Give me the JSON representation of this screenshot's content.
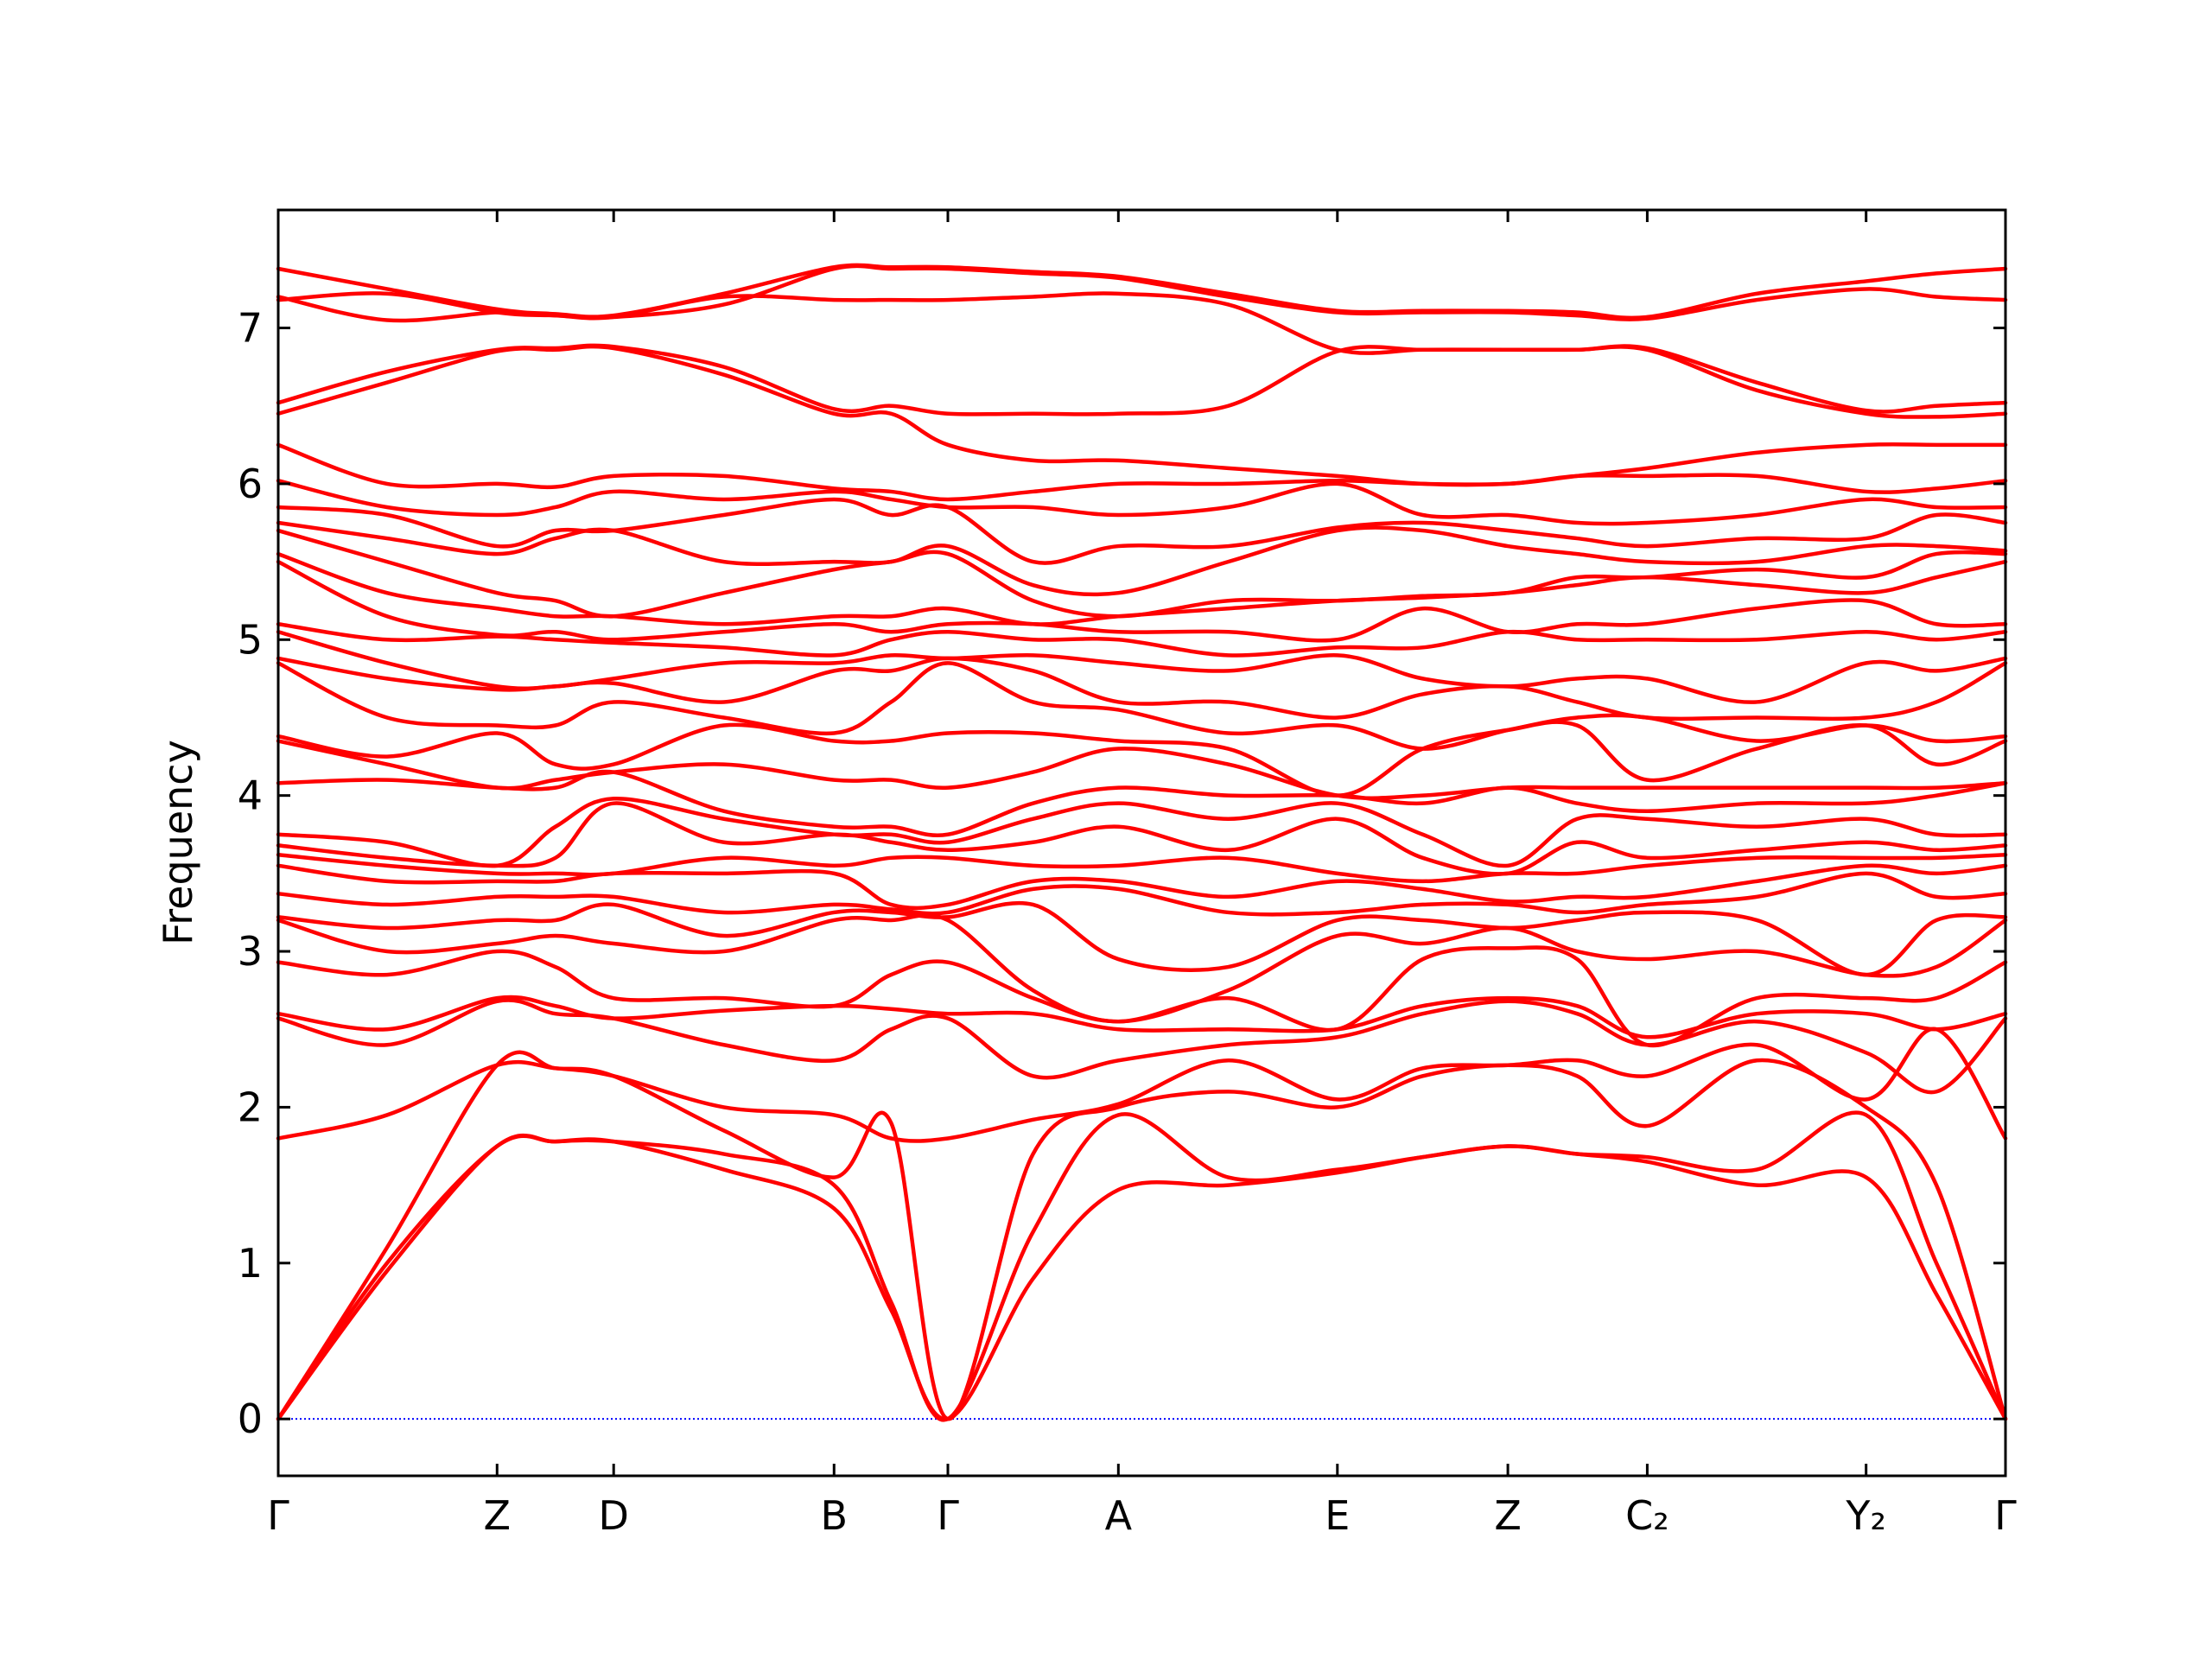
{
  "chart_data": {
    "type": "line",
    "ylabel": "Frequency",
    "color": "#ff0000",
    "zero_line": {
      "y": 0,
      "color": "#0000ff"
    },
    "xlim": [
      0,
      1
    ],
    "ylim": [
      -0.365,
      7.757
    ],
    "yticks": [
      0,
      1,
      2,
      3,
      4,
      5,
      6,
      7
    ],
    "xticks": [
      {
        "value": 0,
        "label": "Γ"
      },
      {
        "value": 0.1267,
        "label": "Z"
      },
      {
        "value": 0.1942,
        "label": "D"
      },
      {
        "value": 0.3218,
        "label": "B"
      },
      {
        "value": 0.3877,
        "label": "Γ"
      },
      {
        "value": 0.4864,
        "label": "A"
      },
      {
        "value": 0.6132,
        "label": "E"
      },
      {
        "value": 0.7119,
        "label": "Z"
      },
      {
        "value": 0.7926,
        "label": "C₂"
      },
      {
        "value": 0.9193,
        "label": "Y₂"
      },
      {
        "value": 1,
        "label": "Γ"
      }
    ],
    "x": [
      0,
      0.063,
      0.1267,
      0.1605,
      0.1942,
      0.258,
      0.3218,
      0.3548,
      0.3877,
      0.437,
      0.4864,
      0.55,
      0.6132,
      0.6626,
      0.7119,
      0.752,
      0.7926,
      0.856,
      0.9193,
      0.96,
      1
    ],
    "series": [
      {
        "values": [
          0,
          0.95,
          1.75,
          1.78,
          1.78,
          1.6,
          1.35,
          0.7,
          0,
          0.9,
          1.47,
          1.5,
          1.58,
          1.68,
          1.75,
          1.7,
          1.65,
          1.5,
          1.55,
          0.8,
          0
        ]
      },
      {
        "values": [
          0,
          1.0,
          1.75,
          1.78,
          1.78,
          1.7,
          1.5,
          0.75,
          0,
          1.2,
          1.95,
          1.55,
          1.6,
          1.68,
          1.75,
          1.7,
          1.68,
          1.6,
          1.95,
          1.0,
          0
        ]
      },
      {
        "values": [
          0,
          1.1,
          2.27,
          2.25,
          2.2,
          1.85,
          1.55,
          1.9,
          0,
          1.7,
          2.0,
          2.1,
          2.0,
          2.2,
          2.27,
          2.2,
          1.88,
          2.3,
          2.0,
          1.5,
          0
        ]
      },
      {
        "values": [
          1.8,
          1.95,
          2.27,
          2.25,
          2.2,
          2.0,
          1.95,
          1.8,
          1.8,
          1.92,
          2.02,
          2.3,
          2.05,
          2.25,
          2.27,
          2.3,
          2.2,
          2.4,
          2.05,
          2.5,
          1.8
        ]
      },
      {
        "values": [
          2.57,
          2.4,
          2.68,
          2.6,
          2.57,
          2.4,
          2.3,
          2.5,
          2.57,
          2.2,
          2.3,
          2.4,
          2.45,
          2.6,
          2.68,
          2.6,
          2.4,
          2.55,
          2.35,
          2.1,
          2.57
        ]
      },
      {
        "values": [
          2.6,
          2.5,
          2.7,
          2.65,
          2.57,
          2.62,
          2.65,
          2.63,
          2.6,
          2.6,
          2.5,
          2.5,
          2.5,
          2.65,
          2.7,
          2.65,
          2.45,
          2.6,
          2.6,
          2.5,
          2.6
        ]
      },
      {
        "values": [
          2.93,
          2.85,
          3.0,
          2.9,
          2.7,
          2.7,
          2.65,
          2.85,
          2.93,
          2.7,
          2.55,
          2.7,
          2.5,
          2.95,
          3.02,
          2.95,
          2.4,
          2.7,
          2.7,
          2.7,
          2.93
        ]
      },
      {
        "values": [
          3.2,
          3.0,
          3.05,
          3.1,
          3.05,
          3.0,
          3.2,
          3.2,
          3.2,
          2.75,
          2.55,
          2.75,
          3.1,
          3.05,
          3.15,
          3.0,
          2.95,
          3.0,
          2.85,
          2.9,
          3.2
        ]
      },
      {
        "values": [
          3.22,
          3.15,
          3.2,
          3.2,
          3.3,
          3.1,
          3.25,
          3.25,
          3.22,
          3.3,
          2.95,
          2.9,
          3.2,
          3.2,
          3.15,
          3.2,
          3.25,
          3.2,
          2.85,
          3.2,
          3.22
        ]
      },
      {
        "values": [
          3.37,
          3.3,
          3.35,
          3.35,
          3.35,
          3.25,
          3.3,
          3.27,
          3.25,
          3.4,
          3.4,
          3.25,
          3.25,
          3.3,
          3.3,
          3.25,
          3.3,
          3.35,
          3.5,
          3.35,
          3.37
        ]
      },
      {
        "values": [
          3.55,
          3.45,
          3.45,
          3.45,
          3.5,
          3.5,
          3.5,
          3.3,
          3.3,
          3.45,
          3.45,
          3.35,
          3.45,
          3.4,
          3.32,
          3.35,
          3.35,
          3.45,
          3.55,
          3.5,
          3.55
        ]
      },
      {
        "values": [
          3.62,
          3.55,
          3.5,
          3.5,
          3.5,
          3.6,
          3.55,
          3.6,
          3.6,
          3.55,
          3.55,
          3.6,
          3.5,
          3.45,
          3.5,
          3.5,
          3.55,
          3.6,
          3.6,
          3.6,
          3.62
        ]
      },
      {
        "values": [
          3.68,
          3.6,
          3.55,
          3.6,
          3.95,
          3.7,
          3.75,
          3.7,
          3.65,
          3.7,
          3.8,
          3.65,
          3.85,
          3.6,
          3.5,
          3.7,
          3.6,
          3.65,
          3.7,
          3.65,
          3.68
        ]
      },
      {
        "values": [
          3.75,
          3.7,
          3.55,
          3.8,
          3.98,
          3.85,
          3.75,
          3.75,
          3.7,
          3.85,
          3.95,
          3.85,
          3.95,
          3.75,
          3.55,
          3.85,
          3.85,
          3.8,
          3.85,
          3.75,
          3.75
        ]
      },
      {
        "values": [
          4.08,
          4.1,
          4.05,
          4.05,
          4.15,
          3.9,
          3.8,
          3.8,
          3.75,
          3.95,
          4.05,
          4.0,
          4.0,
          3.95,
          4.05,
          3.95,
          3.9,
          3.95,
          3.95,
          4.0,
          4.08
        ]
      },
      {
        "values": [
          4.35,
          4.2,
          4.05,
          4.1,
          4.15,
          4.2,
          4.1,
          4.1,
          4.05,
          4.15,
          4.3,
          4.2,
          4.0,
          4.0,
          4.05,
          4.05,
          4.05,
          4.05,
          4.05,
          4.05,
          4.08
        ]
      },
      {
        "values": [
          4.38,
          4.25,
          4.4,
          4.2,
          4.2,
          4.45,
          4.35,
          4.35,
          4.4,
          4.4,
          4.35,
          4.3,
          4.0,
          4.3,
          4.42,
          4.45,
          4.1,
          4.3,
          4.45,
          4.2,
          4.35
        ]
      },
      {
        "values": [
          4.85,
          4.5,
          4.45,
          4.45,
          4.6,
          4.5,
          4.4,
          4.6,
          4.85,
          4.6,
          4.55,
          4.4,
          4.45,
          4.3,
          4.42,
          4.5,
          4.5,
          4.35,
          4.45,
          4.35,
          4.38
        ]
      },
      {
        "values": [
          4.88,
          4.75,
          4.68,
          4.7,
          4.72,
          4.6,
          4.8,
          4.8,
          4.88,
          4.8,
          4.6,
          4.6,
          4.5,
          4.65,
          4.7,
          4.6,
          4.5,
          4.5,
          4.5,
          4.6,
          4.85
        ]
      },
      {
        "values": [
          5.05,
          4.85,
          4.7,
          4.7,
          4.75,
          4.85,
          4.85,
          4.9,
          4.88,
          4.9,
          4.85,
          4.8,
          4.9,
          4.75,
          4.7,
          4.75,
          4.75,
          4.6,
          4.85,
          4.8,
          4.88
        ]
      },
      {
        "values": [
          5.1,
          5.0,
          5.02,
          5.0,
          4.98,
          4.95,
          4.9,
          5.0,
          5.05,
          5.0,
          5.0,
          4.9,
          4.95,
          4.95,
          5.05,
          5.0,
          5.0,
          5.0,
          5.05,
          5.0,
          5.05
        ]
      },
      {
        "values": [
          5.5,
          5.15,
          5.03,
          5.05,
          5.0,
          5.05,
          5.1,
          5.05,
          5.1,
          5.1,
          5.05,
          5.05,
          5.0,
          5.2,
          5.05,
          5.1,
          5.1,
          5.2,
          5.25,
          5.1,
          5.1
        ]
      },
      {
        "values": [
          5.55,
          5.3,
          5.2,
          5.15,
          5.15,
          5.1,
          5.15,
          5.15,
          5.2,
          5.1,
          5.15,
          5.2,
          5.25,
          5.27,
          5.3,
          5.35,
          5.4,
          5.35,
          5.3,
          5.4,
          5.5
        ]
      },
      {
        "values": [
          5.7,
          5.5,
          5.3,
          5.25,
          5.15,
          5.3,
          5.45,
          5.5,
          5.55,
          5.25,
          5.15,
          5.25,
          5.25,
          5.28,
          5.3,
          5.4,
          5.4,
          5.45,
          5.4,
          5.55,
          5.55
        ]
      },
      {
        "values": [
          5.75,
          5.65,
          5.55,
          5.65,
          5.7,
          5.5,
          5.5,
          5.5,
          5.6,
          5.35,
          5.3,
          5.5,
          5.7,
          5.7,
          5.6,
          5.55,
          5.5,
          5.5,
          5.6,
          5.6,
          5.57
        ]
      },
      {
        "values": [
          5.85,
          5.8,
          5.6,
          5.7,
          5.7,
          5.8,
          5.9,
          5.8,
          5.85,
          5.5,
          5.6,
          5.6,
          5.72,
          5.75,
          5.7,
          5.65,
          5.6,
          5.65,
          5.65,
          5.8,
          5.75
        ]
      },
      {
        "values": [
          6.02,
          5.85,
          5.8,
          5.85,
          5.95,
          5.9,
          5.95,
          5.9,
          5.85,
          5.85,
          5.8,
          5.85,
          6.0,
          5.8,
          5.8,
          5.75,
          5.75,
          5.8,
          5.9,
          5.85,
          5.85
        ]
      },
      {
        "values": [
          6.25,
          6.0,
          6.0,
          5.98,
          6.05,
          6.05,
          5.97,
          5.95,
          5.9,
          5.95,
          6.0,
          6.0,
          6.02,
          6.0,
          6.0,
          6.05,
          6.05,
          6.05,
          5.95,
          5.97,
          6.02
        ]
      },
      {
        "values": [
          6.45,
          6.65,
          6.85,
          6.86,
          6.87,
          6.7,
          6.45,
          6.45,
          6.25,
          6.15,
          6.15,
          6.1,
          6.05,
          6.0,
          6.0,
          6.05,
          6.1,
          6.2,
          6.25,
          6.25,
          6.25
        ]
      },
      {
        "values": [
          6.52,
          6.72,
          6.86,
          6.87,
          6.88,
          6.75,
          6.48,
          6.5,
          6.45,
          6.45,
          6.45,
          6.5,
          6.85,
          6.86,
          6.86,
          6.86,
          6.86,
          6.6,
          6.45,
          6.43,
          6.45
        ]
      },
      {
        "values": [
          7.18,
          7.22,
          7.1,
          7.08,
          7.07,
          7.2,
          7.18,
          7.18,
          7.18,
          7.2,
          7.22,
          7.15,
          6.86,
          6.86,
          6.86,
          6.86,
          6.87,
          6.65,
          6.47,
          6.5,
          6.52
        ]
      },
      {
        "values": [
          7.2,
          7.05,
          7.1,
          7.08,
          7.07,
          7.15,
          7.38,
          7.38,
          7.38,
          7.35,
          7.32,
          7.2,
          7.1,
          7.1,
          7.1,
          7.08,
          7.06,
          7.18,
          7.25,
          7.2,
          7.18
        ]
      },
      {
        "values": [
          7.38,
          7.25,
          7.12,
          7.09,
          7.08,
          7.22,
          7.39,
          7.39,
          7.39,
          7.36,
          7.33,
          7.22,
          7.11,
          7.11,
          7.11,
          7.1,
          7.07,
          7.22,
          7.3,
          7.35,
          7.38
        ]
      }
    ]
  }
}
